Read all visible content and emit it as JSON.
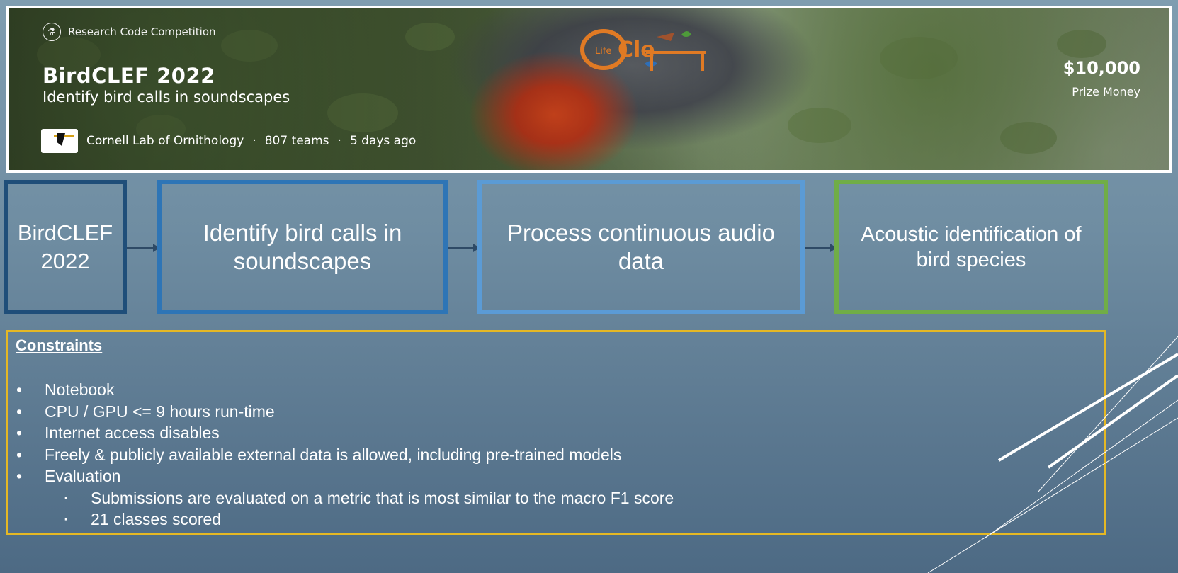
{
  "banner": {
    "badge_label": "Research Code Competition",
    "title": "BirdCLEF 2022",
    "subtitle": "Identify bird calls in soundscapes",
    "host": "Cornell Lab of Ornithology",
    "teams": "807 teams",
    "posted": "5 days ago",
    "separator": "·",
    "prize_amount": "$10,000",
    "prize_label": "Prize Money",
    "logo_text_life": "Life",
    "logo_text_clef": "Cle"
  },
  "flow": [
    {
      "label": "BirdCLEF 2022",
      "color": "#1f4e79"
    },
    {
      "label": "Identify bird calls in soundscapes",
      "color": "#2e75b6"
    },
    {
      "label": "Process continuous audio data",
      "color": "#5b9bd5"
    },
    {
      "label": "Acoustic identification of bird species",
      "color": "#70ad47"
    }
  ],
  "constraints": {
    "title": "Constraints",
    "bullet": "•",
    "sub_bullet": "▪",
    "items": [
      "Notebook",
      "CPU / GPU <= 9 hours run-time",
      "Internet access disables",
      "Freely & publicly available external data is allowed, including pre-trained models",
      "Evaluation"
    ],
    "sub_items": [
      "Submissions are evaluated on a metric that is most similar to the macro F1 score",
      "21 classes scored"
    ],
    "border_color": "#e5b824"
  }
}
